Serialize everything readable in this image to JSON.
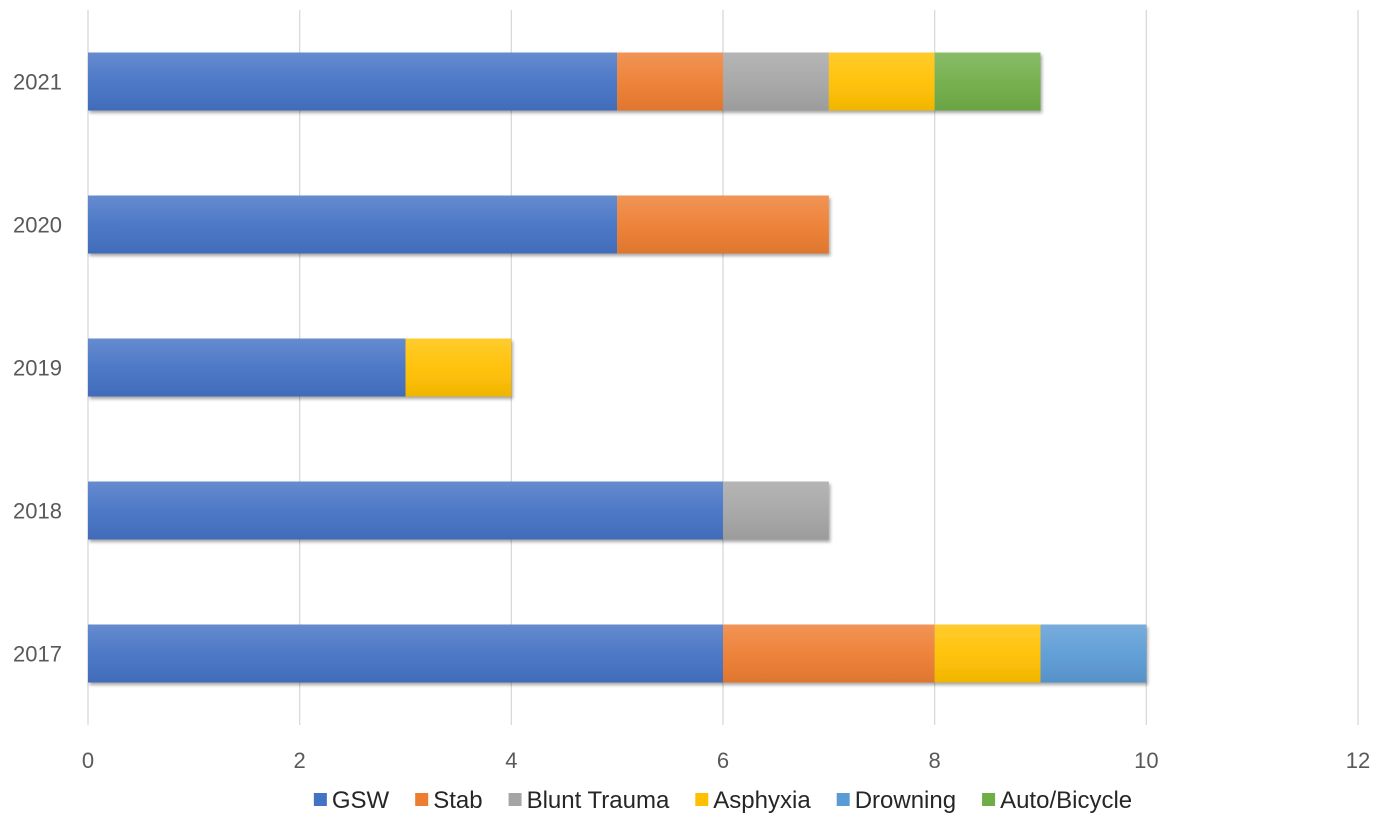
{
  "chart_data": {
    "type": "bar",
    "orientation": "horizontal",
    "stacked": true,
    "title": "",
    "xlabel": "",
    "ylabel": "",
    "categories": [
      "2017",
      "2018",
      "2019",
      "2020",
      "2021"
    ],
    "series": [
      {
        "name": "GSW",
        "color": "#4472C4",
        "values": [
          6,
          6,
          3,
          5,
          5
        ]
      },
      {
        "name": "Stab",
        "color": "#ED7D31",
        "values": [
          2,
          0,
          0,
          2,
          1
        ]
      },
      {
        "name": "Blunt Trauma",
        "color": "#A5A5A5",
        "values": [
          0,
          1,
          0,
          0,
          1
        ]
      },
      {
        "name": "Asphyxia",
        "color": "#FFC000",
        "values": [
          1,
          0,
          1,
          0,
          1
        ]
      },
      {
        "name": "Drowning",
        "color": "#5B9BD5",
        "values": [
          1,
          0,
          0,
          0,
          0
        ]
      },
      {
        "name": "Auto/Bicycle",
        "color": "#70AD47",
        "values": [
          0,
          0,
          0,
          0,
          1
        ]
      }
    ],
    "xlim": [
      0,
      12
    ],
    "x_ticks": [
      "0",
      "2",
      "4",
      "6",
      "8",
      "10",
      "12"
    ],
    "grid": true,
    "legend_position": "bottom"
  }
}
